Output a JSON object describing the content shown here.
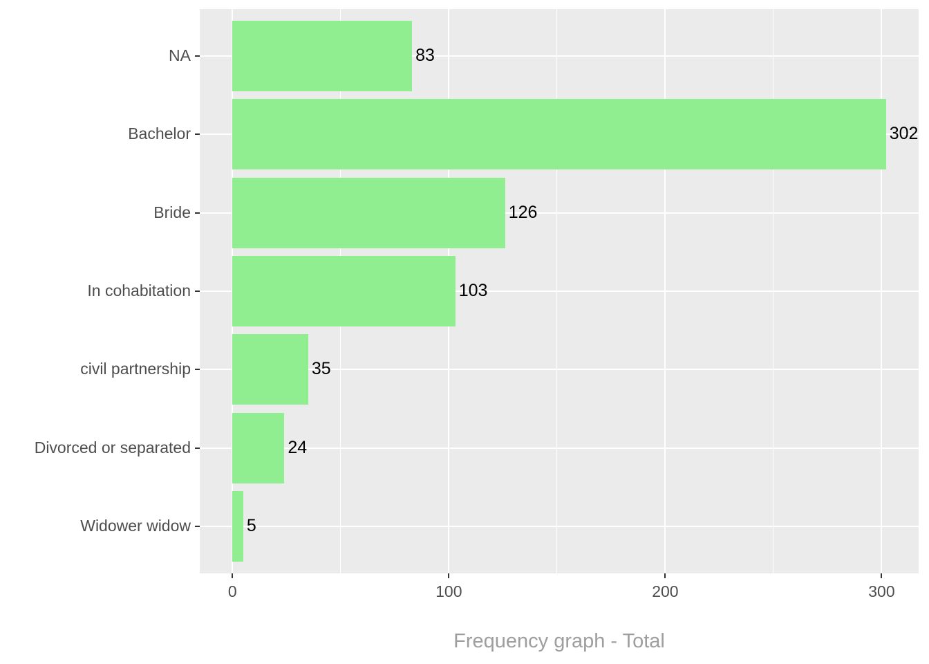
{
  "chart_data": {
    "type": "bar",
    "orientation": "horizontal",
    "title": "Frequency graph - Total",
    "title_position": "bottom-center",
    "categories": [
      "NA",
      "Bachelor",
      "Bride",
      "In cohabitation",
      "civil partnership",
      "Divorced or separated",
      "Widower widow"
    ],
    "values": [
      83,
      302,
      126,
      103,
      35,
      24,
      5
    ],
    "bar_labels": [
      "83",
      "302",
      "126",
      "103",
      "35",
      "24",
      "5"
    ],
    "xlabel": "Frequency graph - Total",
    "ylabel": "",
    "x_major_ticks": [
      0,
      100,
      200,
      300
    ],
    "x_tick_labels": [
      "0",
      "100",
      "200",
      "300"
    ],
    "x_minor_gridlines": [
      50,
      150,
      250
    ],
    "xlim": [
      -15.1,
      317.1
    ],
    "bar_width_fraction": 0.9,
    "category_expand": 0.6,
    "grid": "white vertical major+minor, white horizontal major at category centers",
    "legend": false,
    "colors": {
      "bar": "#90EE90",
      "panel_background": "#EBEBEB",
      "gridline": "#FFFFFF",
      "axis_text": "#4D4D4D",
      "tick_mark": "#333333",
      "value_label": "#000000",
      "title": "#9E9E9E",
      "page_background": "#FFFFFF"
    }
  }
}
